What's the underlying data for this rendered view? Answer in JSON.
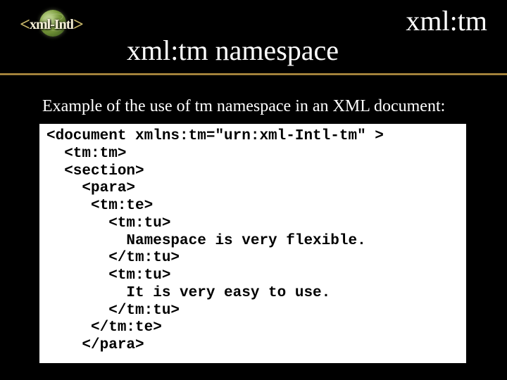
{
  "logo": {
    "bracket_open": "<",
    "text": "xml-Intl",
    "bracket_close": ">"
  },
  "corner_title": "xml:tm",
  "main_title": "xml:tm namespace",
  "intro_text": "Example of the use of tm namespace in an XML document:",
  "code": "<document xmlns:tm=\"urn:xml-Intl-tm\" >\n  <tm:tm>\n  <section>\n    <para>\n     <tm:te>\n       <tm:tu>\n         Namespace is very flexible.\n       </tm:tu>\n       <tm:tu>\n         It is very easy to use.\n       </tm:tu>\n     </tm:te>\n    </para>",
  "colors": {
    "background": "#000000",
    "text": "#ffffff",
    "codebox_bg": "#ffffff",
    "code_text": "#000000",
    "divider_gold": "#c9a24a"
  },
  "fonts": {
    "body": "Times New Roman",
    "code": "Courier New",
    "title_size_pt": 40,
    "intro_size_pt": 24,
    "code_size_pt": 21
  }
}
